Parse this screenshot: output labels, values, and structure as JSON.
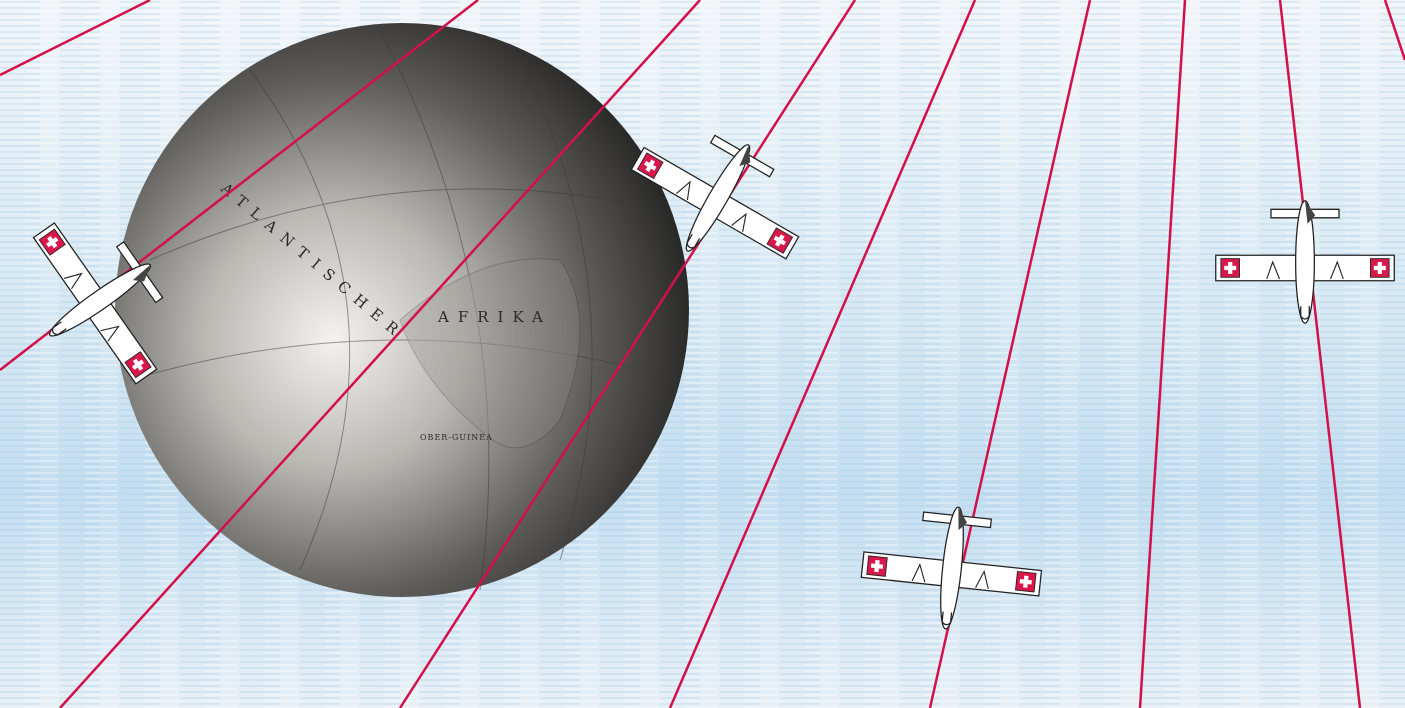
{
  "globe_labels": [
    "ATLANTISCHER",
    "AFRIKA",
    "OBER-GUINEA"
  ]
}
